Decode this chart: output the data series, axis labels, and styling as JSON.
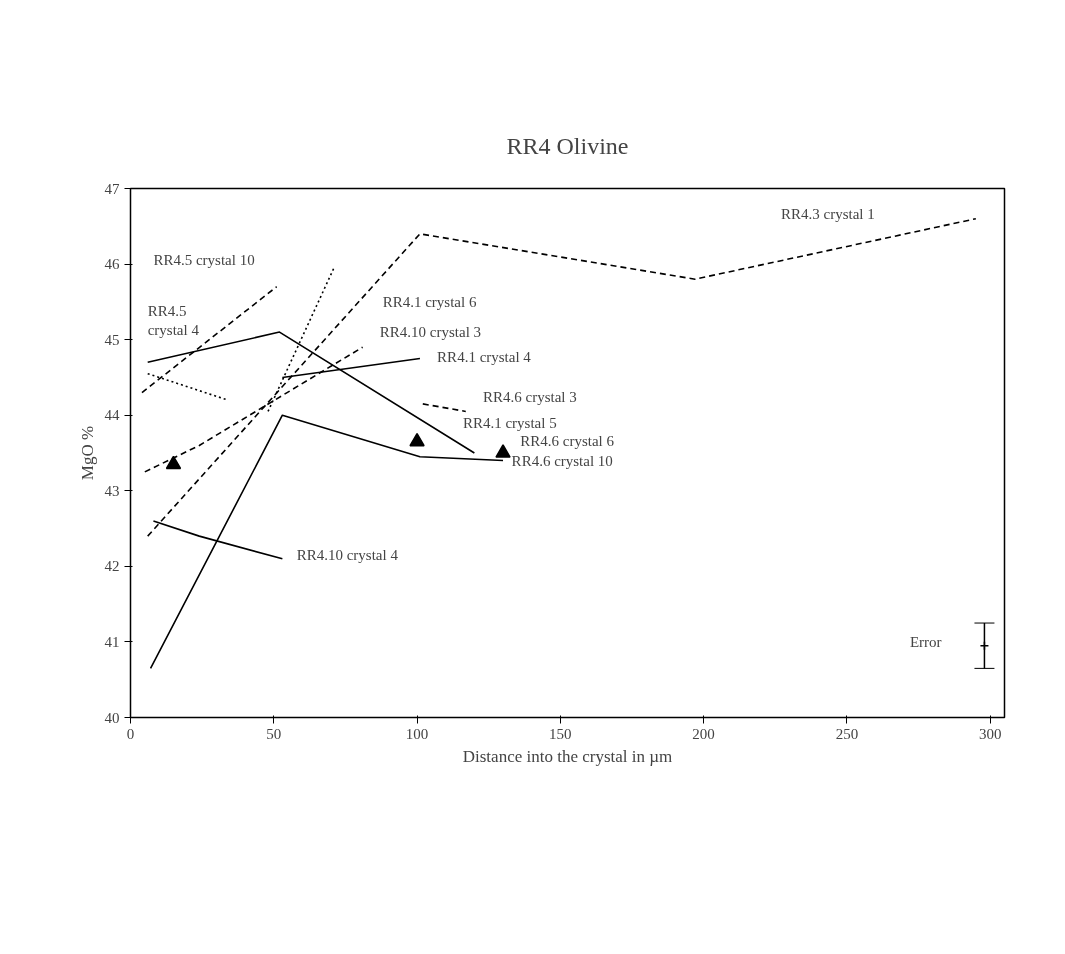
{
  "chart_data": {
    "type": "line",
    "title": "RR4 Olivine",
    "xlabel": "Distance into the crystal in µm",
    "ylabel": "MgO %",
    "xlim": [
      0,
      305
    ],
    "ylim": [
      40,
      47
    ],
    "xticks": [
      0,
      50,
      100,
      150,
      200,
      250,
      300
    ],
    "yticks": [
      40,
      41,
      42,
      43,
      44,
      45,
      46,
      47
    ],
    "grid": false,
    "marker": "none",
    "series": [
      {
        "color": "#000000",
        "line_style": "dashed",
        "x": [
          6,
          101,
          197,
          295
        ],
        "values": [
          42.4,
          46.4,
          45.8,
          46.6
        ]
      },
      {
        "color": "#000000",
        "line_style": "solid",
        "x": [
          6,
          52,
          120
        ],
        "values": [
          44.7,
          45.1,
          43.5
        ]
      },
      {
        "color": "#000000",
        "line_style": "solid",
        "x": [
          53,
          101
        ],
        "values": [
          44.5,
          44.75
        ]
      },
      {
        "color": "#000000",
        "line_style": "solid",
        "x": [
          8,
          24,
          53
        ],
        "values": [
          42.6,
          42.4,
          42.1
        ]
      },
      {
        "color": "#000000",
        "line_style": "solid",
        "x": [
          7,
          53,
          101,
          130
        ],
        "values": [
          40.65,
          44.0,
          43.45,
          43.4
        ]
      },
      {
        "color": "#000000",
        "line_style": "dashed",
        "x": [
          5,
          24,
          81
        ],
        "values": [
          43.25,
          43.6,
          44.9
        ]
      },
      {
        "color": "#000000",
        "line_style": "dashed",
        "x": [
          4,
          51
        ],
        "values": [
          44.3,
          45.7
        ]
      },
      {
        "color": "#000000",
        "line_style": "dotted",
        "x": [
          48,
          71
        ],
        "values": [
          44.05,
          45.95
        ]
      },
      {
        "color": "#000000",
        "line_style": "dotted",
        "x": [
          6,
          34
        ],
        "values": [
          44.55,
          44.2
        ]
      },
      {
        "color": "#000000",
        "line_style": "dashed",
        "x": [
          102,
          117
        ],
        "values": [
          44.15,
          44.05
        ]
      },
      {
        "type": "scatter",
        "marker": "triangle",
        "color": "#000000",
        "x": [
          15,
          100,
          130
        ],
        "values": [
          43.35,
          43.65,
          43.5
        ]
      },
      {
        "type": "scatter",
        "marker": "cross",
        "color": "#000000",
        "x": [
          298
        ],
        "values": [
          40.95
        ],
        "errors": [
          0.3
        ]
      }
    ],
    "annotations": [
      "RR4.5 crystal 10",
      "RR4.5\ncrystal 4",
      "RR4.1 crystal 6",
      "RR4.10 crystal 3",
      "RR4.1 crystal 4",
      "RR4.6 crystal 3",
      "RR4.1 crystal 5",
      "RR4.6 crystal 6",
      "RR4.6 crystal 10",
      "RR4.3 crystal 1",
      "RR4.10 crystal 4",
      "Error"
    ]
  }
}
